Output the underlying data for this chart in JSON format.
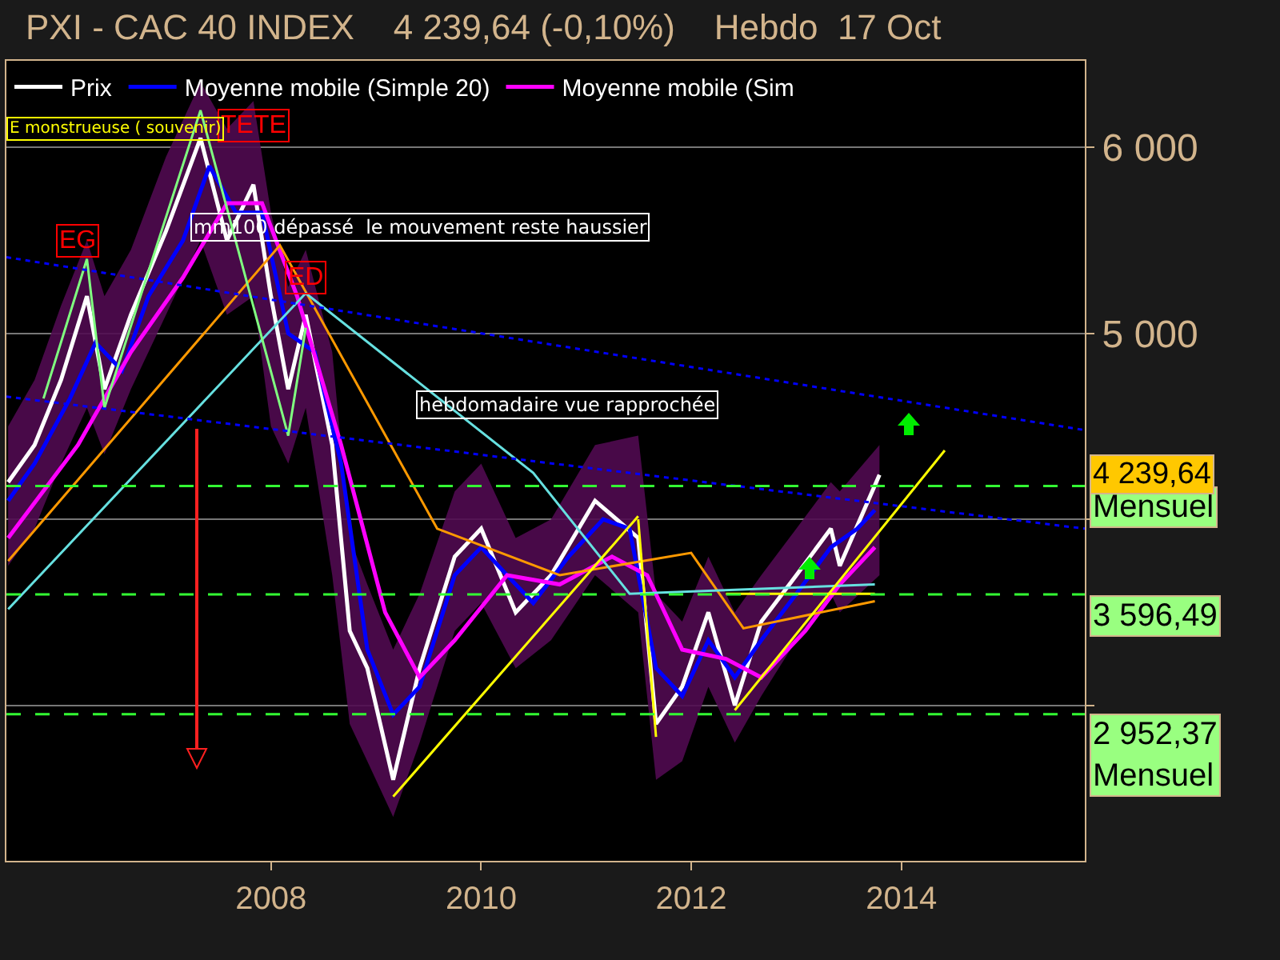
{
  "chart_data": {
    "type": "line",
    "title": "PXI - CAC 40 INDEX    4 239,64 (-0,10%)    Hebdo  17 Oct",
    "xlim": [
      "2005-06-25",
      "2015-10-01"
    ],
    "xticks": [
      "2008",
      "2010",
      "2012",
      "2014"
    ],
    "ylim": [
      2164,
      6466
    ],
    "yticks": [
      {
        "value": 3000,
        "label": null
      },
      {
        "value": 4000,
        "label": null
      },
      {
        "value": 5000,
        "label": "5 000"
      },
      {
        "value": 6000,
        "label": "6 000"
      }
    ],
    "grid": "y",
    "legend": "top left",
    "marker": "none",
    "line_style": "solid",
    "series": [
      {
        "name": "Prix",
        "color": "#ffffff",
        "x": [
          "2005-07",
          "2005-10",
          "2006-01",
          "2006-04",
          "2006-06",
          "2006-09",
          "2007-01",
          "2007-05",
          "2007-08",
          "2007-11",
          "2008-01",
          "2008-03",
          "2008-05",
          "2008-08",
          "2008-10",
          "2008-12",
          "2009-03",
          "2009-06",
          "2009-10",
          "2010-01",
          "2010-05",
          "2010-09",
          "2011-02",
          "2011-07",
          "2011-09",
          "2011-12",
          "2012-03",
          "2012-06",
          "2012-09",
          "2013-01",
          "2013-05",
          "2013-06",
          "2013-10-17"
        ],
        "values": [
          4200,
          4400,
          4750,
          5200,
          4700,
          5100,
          5550,
          6050,
          5500,
          5800,
          5200,
          4700,
          5100,
          4400,
          3400,
          3200,
          2600,
          3200,
          3800,
          3950,
          3500,
          3700,
          4100,
          3900,
          2900,
          3100,
          3500,
          3000,
          3450,
          3700,
          3950,
          3750,
          4239.64
        ],
        "lower": [
          3750,
          3950,
          4300,
          4600,
          4350,
          4700,
          5100,
          5500,
          5100,
          5200,
          4500,
          4300,
          4600,
          3700,
          2900,
          2700,
          2400,
          2800,
          3400,
          3550,
          3200,
          3350,
          3700,
          3500,
          2600,
          2700,
          3100,
          2800,
          3050,
          3350,
          3600,
          3500,
          3700
        ],
        "upper": [
          4500,
          4750,
          5150,
          5500,
          5200,
          5450,
          5950,
          6350,
          6100,
          6250,
          5650,
          5250,
          5450,
          4900,
          3900,
          3650,
          3300,
          3600,
          4150,
          4300,
          3900,
          4000,
          4400,
          4450,
          3600,
          3450,
          3800,
          3500,
          3700,
          3950,
          4200,
          4150,
          4400
        ]
      },
      {
        "name": "Moyenne mobile (Simple 20)",
        "color": "#0000ff",
        "x": [
          "2005-07",
          "2005-10",
          "2006-02",
          "2006-05",
          "2006-08",
          "2006-11",
          "2007-03",
          "2007-06",
          "2007-09",
          "2007-12",
          "2008-03",
          "2008-06",
          "2008-09",
          "2008-12",
          "2009-03",
          "2009-06",
          "2009-10",
          "2010-01",
          "2010-04",
          "2010-07",
          "2010-11",
          "2011-03",
          "2011-06",
          "2011-09",
          "2011-12",
          "2012-03",
          "2012-06",
          "2012-09",
          "2013-01",
          "2013-05",
          "2013-08",
          "2013-10"
        ],
        "values": [
          4100,
          4300,
          4650,
          4950,
          4800,
          5200,
          5500,
          5900,
          5650,
          5650,
          5000,
          4900,
          4300,
          3300,
          2950,
          3100,
          3700,
          3850,
          3700,
          3550,
          3800,
          4000,
          3950,
          3200,
          3050,
          3350,
          3150,
          3350,
          3600,
          3850,
          3950,
          4050
        ]
      },
      {
        "name": "Moyenne mobile (Sim",
        "color": "#ff00ff",
        "x": [
          "2005-07",
          "2006-03",
          "2006-09",
          "2007-03",
          "2007-08",
          "2007-12",
          "2008-04",
          "2008-09",
          "2009-02",
          "2009-06",
          "2009-10",
          "2010-04",
          "2010-10",
          "2011-04",
          "2011-08",
          "2011-12",
          "2012-05",
          "2012-09",
          "2013-02",
          "2013-06",
          "2013-10"
        ],
        "values": [
          3900,
          4400,
          4900,
          5300,
          5700,
          5700,
          5200,
          4400,
          3500,
          3150,
          3350,
          3700,
          3650,
          3800,
          3700,
          3300,
          3250,
          3150,
          3400,
          3650,
          3850
        ]
      },
      {
        "color": "#ff9900",
        "x": [
          "2005-07",
          "2008-02",
          "2009-08",
          "2010-10",
          "2012-01",
          "2012-07",
          "2013-10"
        ],
        "values": [
          3776,
          5474,
          3950,
          3700,
          3820,
          3414,
          3560
        ]
      },
      {
        "color": "#66e0e0",
        "x": [
          "2005-07",
          "2008-05",
          "2010-07",
          "2011-06",
          "2013-10"
        ],
        "values": [
          3517,
          5216,
          4250,
          3600,
          3650
        ]
      },
      {
        "color": "#80ff80",
        "x": [
          "2005-11",
          "2006-04",
          "2006-06",
          "2007-05",
          "2008-03",
          "2008-05"
        ],
        "values": [
          4650,
          5400,
          4600,
          6200,
          4450,
          5030
        ]
      },
      {
        "color": "#0000ff",
        "line_style": "dotted",
        "x": [
          "2005-06-25",
          "2015-10-01"
        ],
        "values": [
          5410,
          4480
        ]
      },
      {
        "color": "#0000ff",
        "line_style": "dotted",
        "x": [
          "2005-06-25",
          "2015-10-01"
        ],
        "values": [
          4660,
          3950
        ]
      },
      {
        "color": "#ffff00",
        "x": [
          "2009-03",
          "2011-07"
        ],
        "values": [
          2509,
          4017
        ]
      },
      {
        "color": "#ffff00",
        "x": [
          "2011-07",
          "2011-09"
        ],
        "values": [
          4000,
          2830
        ]
      },
      {
        "color": "#ffff00",
        "x": [
          "2012-06",
          "2014-06"
        ],
        "values": [
          2974,
          4371
        ]
      },
      {
        "color": "#ffff00",
        "x": [
          "2012-05",
          "2013-10"
        ],
        "values": [
          3600,
          3600
        ]
      }
    ],
    "ref_lines": [
      {
        "axis": "y",
        "value": 4180,
        "label": "Mensuel",
        "color": "#33ff33",
        "line_style": "dashed"
      },
      {
        "axis": "y",
        "value": 3596.49,
        "label": "3 596,49",
        "color": "#33ff33",
        "line_style": "dashed"
      },
      {
        "axis": "y",
        "value": 2952.37,
        "label": "2 952,37\nMensuel",
        "color": "#33ff33",
        "line_style": "dashed"
      }
    ],
    "annotations": [
      {
        "text": "TETE",
        "x": "2007-11",
        "y": 6120
      },
      {
        "text": "EG",
        "x": "2006-03",
        "y": 5500
      },
      {
        "text": "ED",
        "x": "2008-05",
        "y": 5300
      },
      "4 239,64",
      "E monstrueuse ( souvenir)",
      "mm100 dépassé  le mouvement reste haussier",
      "hebdomadaire vue rapprochée"
    ]
  }
}
